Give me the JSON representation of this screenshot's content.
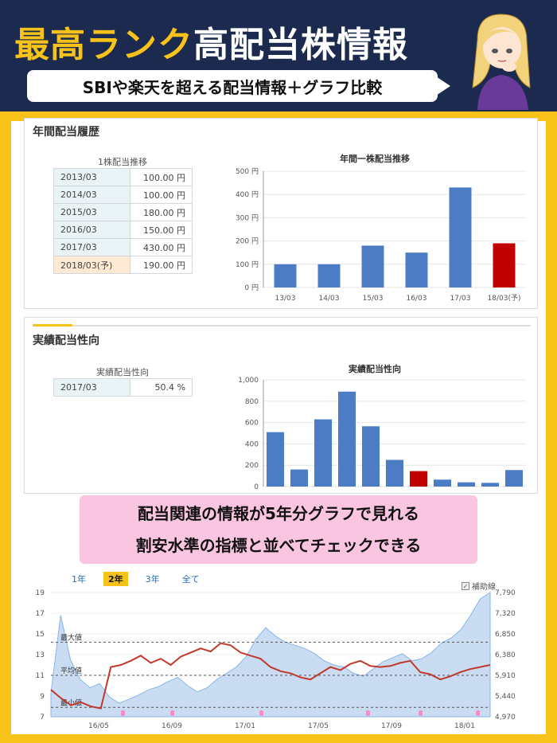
{
  "header": {
    "title_highlight": "最高ランク",
    "title_rest": "高配当株情報",
    "subtitle": "SBIや楽天を超える配当情報＋グラフ比較"
  },
  "annual_dividend": {
    "section_title": "年間配当履歴",
    "table_caption": "1株配当推移",
    "rows": [
      {
        "year": "2013/03",
        "value": "100.00 円"
      },
      {
        "year": "2014/03",
        "value": "100.00 円"
      },
      {
        "year": "2015/03",
        "value": "180.00 円"
      },
      {
        "year": "2016/03",
        "value": "150.00 円"
      },
      {
        "year": "2017/03",
        "value": "430.00 円"
      },
      {
        "year": "2018/03(予)",
        "value": "190.00 円"
      }
    ],
    "chart_title": "年間一株配当推移"
  },
  "payout": {
    "section_title": "実績配当性向",
    "table_caption": "実績配当性向",
    "row": {
      "year": "2017/03",
      "value": "50.4 %"
    },
    "chart_title": "実績配当性向"
  },
  "callout": {
    "line1": "配当関連の情報が5年分グラフで見れる",
    "line2": "割安水準の指標と並べてチェックできる"
  },
  "price_chart": {
    "tabs": [
      "1年",
      "2年",
      "3年",
      "全て"
    ],
    "active_tab": "2年",
    "aux_label": "補助線",
    "ref_labels": {
      "max": "最大値",
      "avg": "平均値",
      "min": "最小値"
    }
  },
  "colors": {
    "navy": "#1b2a4e",
    "gold": "#f7c21a",
    "bar_blue": "#4b7cc4",
    "bar_red": "#c00000",
    "pink": "#f9c5e0"
  },
  "chart_data": [
    {
      "type": "bar",
      "title": "年間一株配当推移",
      "categories": [
        "13/03",
        "14/03",
        "15/03",
        "16/03",
        "17/03",
        "18/03(予)"
      ],
      "values": [
        100,
        100,
        180,
        150,
        430,
        190
      ],
      "highlight_index": 5,
      "yticks": [
        "0 円",
        "100 円",
        "200 円",
        "300 円",
        "400 円",
        "500 円"
      ],
      "ylim": [
        0,
        500
      ]
    },
    {
      "type": "bar",
      "title": "実績配当性向",
      "values": [
        510,
        160,
        630,
        890,
        565,
        250,
        145,
        65,
        40,
        35,
        155
      ],
      "highlight_index": 6,
      "yticks": [
        "0",
        "200",
        "400",
        "600",
        "800",
        "1,000"
      ],
      "ylim": [
        0,
        1000
      ]
    },
    {
      "type": "line",
      "x_ticks": [
        "16/05",
        "16/09",
        "17/01",
        "17/05",
        "17/09",
        "18/01"
      ],
      "y_left_ticks": [
        "7",
        "9",
        "11",
        "13",
        "15",
        "17",
        "19"
      ],
      "y_right_ticks": [
        "4,970",
        "5,440",
        "5,910",
        "6,380",
        "6,850",
        "7,320",
        "7,790"
      ],
      "ylim_left": [
        7,
        19
      ],
      "ref_lines": {
        "max": 14.2,
        "avg": 11,
        "min": 7.9
      },
      "series": [
        {
          "values": [
            9.3,
            16.8,
            12.5,
            10.6,
            9.8,
            10.2,
            8.9,
            8.3,
            8.7,
            9.1,
            9.6,
            9.9,
            10.4,
            10.8,
            10.0,
            9.4,
            9.8,
            10.6,
            11.2,
            11.8,
            12.8,
            14.5,
            15.6,
            14.8,
            14.2,
            13.9,
            13.6,
            13.1,
            12.4,
            12.0,
            11.8,
            11.2,
            10.9,
            11.6,
            12.3,
            12.7,
            13.1,
            12.4,
            12.6,
            13.2,
            14.1,
            14.6,
            15.4,
            16.8,
            18.4,
            19.0
          ]
        },
        {
          "values": [
            9.6,
            8.8,
            8.1,
            8.4,
            8.0,
            7.8,
            11.8,
            12.0,
            12.4,
            12.9,
            12.2,
            12.6,
            12.0,
            12.8,
            13.2,
            13.6,
            13.3,
            14.1,
            13.9,
            13.2,
            12.9,
            12.6,
            11.8,
            11.4,
            11.2,
            10.8,
            10.6,
            11.2,
            11.8,
            11.5,
            12.1,
            12.4,
            11.9,
            11.8,
            11.9,
            12.2,
            12.4,
            11.3,
            11.1,
            10.6,
            10.9,
            11.3,
            11.6,
            11.8,
            12.0
          ]
        }
      ]
    }
  ]
}
